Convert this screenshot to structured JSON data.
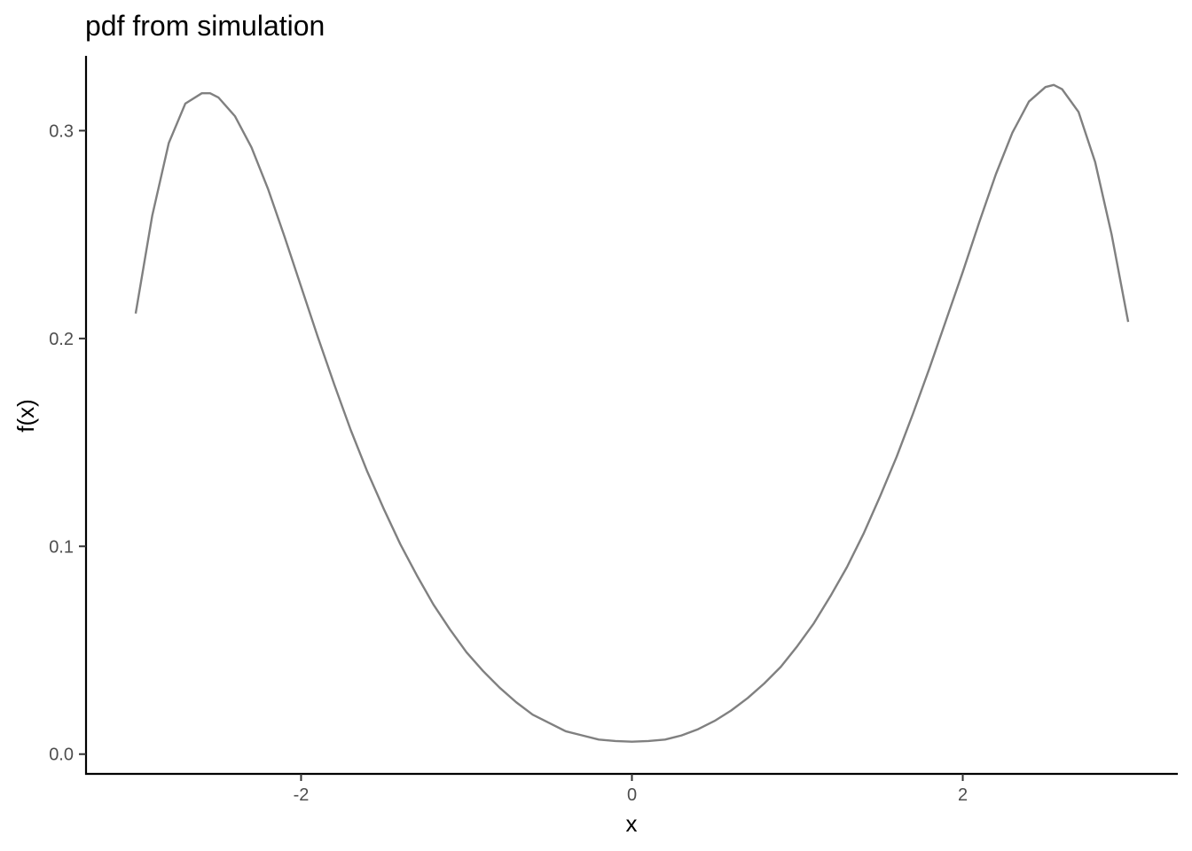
{
  "chart_data": {
    "type": "line",
    "title": "pdf from simulation",
    "xlabel": "x",
    "ylabel": "f(x)",
    "xlim": [
      -3.3,
      3.3
    ],
    "ylim": [
      -0.0095,
      0.336
    ],
    "x_ticks": [
      {
        "value": -2,
        "label": "-2"
      },
      {
        "value": 0,
        "label": "0"
      },
      {
        "value": 2,
        "label": "2"
      }
    ],
    "y_ticks": [
      {
        "value": 0.0,
        "label": "0.0"
      },
      {
        "value": 0.1,
        "label": "0.1"
      },
      {
        "value": 0.2,
        "label": "0.2"
      },
      {
        "value": 0.3,
        "label": "0.3"
      }
    ],
    "grid": false,
    "legend": "none",
    "series": [
      {
        "color": "#808080",
        "x": [
          -3.0,
          -2.9,
          -2.8,
          -2.7,
          -2.6,
          -2.55,
          -2.5,
          -2.4,
          -2.3,
          -2.2,
          -2.1,
          -2.0,
          -1.9,
          -1.8,
          -1.7,
          -1.6,
          -1.5,
          -1.4,
          -1.3,
          -1.2,
          -1.1,
          -1.0,
          -0.9,
          -0.8,
          -0.7,
          -0.6,
          -0.5,
          -0.4,
          -0.3,
          -0.2,
          -0.1,
          0.0,
          0.1,
          0.2,
          0.3,
          0.4,
          0.5,
          0.6,
          0.7,
          0.8,
          0.9,
          1.0,
          1.1,
          1.2,
          1.3,
          1.4,
          1.5,
          1.6,
          1.7,
          1.8,
          1.9,
          2.0,
          2.1,
          2.2,
          2.3,
          2.4,
          2.5,
          2.55,
          2.6,
          2.7,
          2.8,
          2.9,
          3.0
        ],
        "y": [
          0.212,
          0.259,
          0.294,
          0.313,
          0.318,
          0.318,
          0.316,
          0.307,
          0.292,
          0.272,
          0.249,
          0.225,
          0.201,
          0.178,
          0.156,
          0.136,
          0.118,
          0.101,
          0.086,
          0.072,
          0.06,
          0.049,
          0.04,
          0.032,
          0.025,
          0.019,
          0.015,
          0.011,
          0.009,
          0.007,
          0.0063,
          0.006,
          0.0063,
          0.007,
          0.009,
          0.012,
          0.016,
          0.021,
          0.027,
          0.034,
          0.042,
          0.052,
          0.063,
          0.076,
          0.09,
          0.106,
          0.124,
          0.143,
          0.164,
          0.186,
          0.209,
          0.232,
          0.256,
          0.279,
          0.299,
          0.314,
          0.321,
          0.322,
          0.32,
          0.309,
          0.285,
          0.25,
          0.208
        ]
      }
    ]
  }
}
